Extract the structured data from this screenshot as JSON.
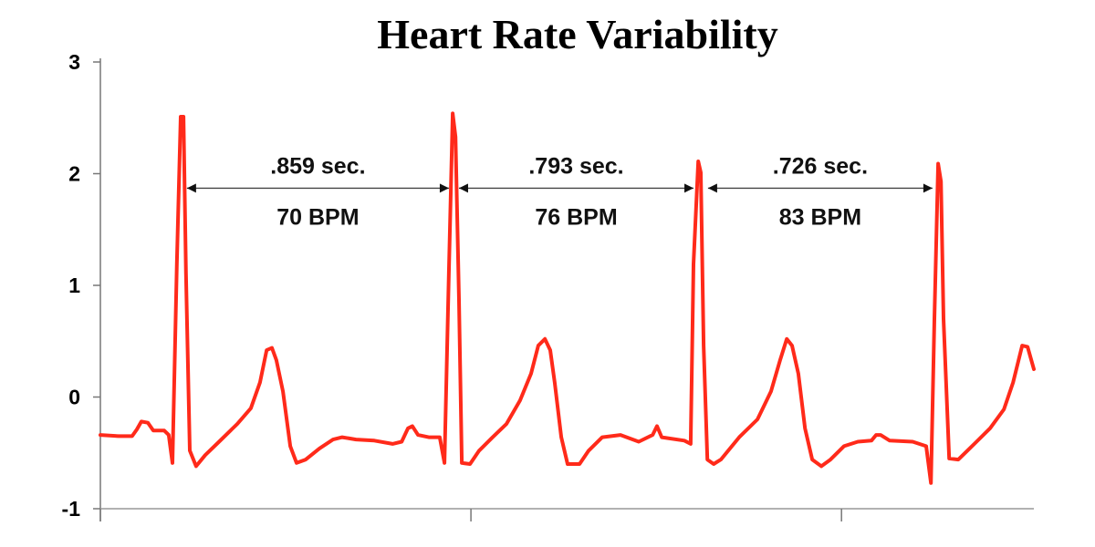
{
  "chart_data": {
    "type": "line",
    "title": "Heart Rate Variability",
    "xlabel": "",
    "ylabel": "",
    "ylim": [
      -1,
      3
    ],
    "xlim": [
      0,
      2.965
    ],
    "y_ticks": [
      3,
      2,
      1,
      0,
      -1
    ],
    "y_tick_labels": [
      "3",
      "2",
      "1",
      "0",
      "-1"
    ],
    "x_ticks": [
      0,
      1.177,
      2.354
    ],
    "grid": false,
    "legend": "none",
    "line_color": "#ff2a1a",
    "series": [
      {
        "points": [
          [
            0.0,
            -0.34
          ],
          [
            0.058,
            -0.35
          ],
          [
            0.101,
            -0.35
          ],
          [
            0.116,
            -0.29
          ],
          [
            0.13,
            -0.22
          ],
          [
            0.151,
            -0.23
          ],
          [
            0.168,
            -0.3
          ],
          [
            0.203,
            -0.3
          ],
          [
            0.217,
            -0.34
          ],
          [
            0.229,
            -0.59
          ],
          [
            0.243,
            1.19
          ],
          [
            0.255,
            2.51
          ],
          [
            0.264,
            2.51
          ],
          [
            0.272,
            1.11
          ],
          [
            0.284,
            -0.48
          ],
          [
            0.304,
            -0.62
          ],
          [
            0.333,
            -0.52
          ],
          [
            0.377,
            -0.4
          ],
          [
            0.435,
            -0.24
          ],
          [
            0.478,
            -0.1
          ],
          [
            0.507,
            0.13
          ],
          [
            0.528,
            0.42
          ],
          [
            0.545,
            0.44
          ],
          [
            0.559,
            0.33
          ],
          [
            0.58,
            0.05
          ],
          [
            0.603,
            -0.44
          ],
          [
            0.623,
            -0.59
          ],
          [
            0.652,
            -0.56
          ],
          [
            0.696,
            -0.46
          ],
          [
            0.739,
            -0.38
          ],
          [
            0.768,
            -0.36
          ],
          [
            0.812,
            -0.38
          ],
          [
            0.87,
            -0.39
          ],
          [
            0.928,
            -0.42
          ],
          [
            0.957,
            -0.4
          ],
          [
            0.977,
            -0.28
          ],
          [
            0.991,
            -0.26
          ],
          [
            1.009,
            -0.34
          ],
          [
            1.043,
            -0.36
          ],
          [
            1.078,
            -0.36
          ],
          [
            1.093,
            -0.59
          ],
          [
            1.107,
            1.11
          ],
          [
            1.119,
            2.54
          ],
          [
            1.128,
            2.33
          ],
          [
            1.139,
            0.87
          ],
          [
            1.148,
            -0.59
          ],
          [
            1.174,
            -0.6
          ],
          [
            1.203,
            -0.48
          ],
          [
            1.246,
            -0.36
          ],
          [
            1.29,
            -0.24
          ],
          [
            1.333,
            -0.03
          ],
          [
            1.368,
            0.21
          ],
          [
            1.391,
            0.46
          ],
          [
            1.412,
            0.52
          ],
          [
            1.429,
            0.42
          ],
          [
            1.443,
            0.13
          ],
          [
            1.464,
            -0.36
          ],
          [
            1.484,
            -0.6
          ],
          [
            1.522,
            -0.6
          ],
          [
            1.551,
            -0.48
          ],
          [
            1.594,
            -0.36
          ],
          [
            1.652,
            -0.34
          ],
          [
            1.71,
            -0.4
          ],
          [
            1.754,
            -0.34
          ],
          [
            1.768,
            -0.26
          ],
          [
            1.783,
            -0.36
          ],
          [
            1.855,
            -0.39
          ],
          [
            1.875,
            -0.42
          ],
          [
            1.884,
            1.19
          ],
          [
            1.899,
            2.11
          ],
          [
            1.907,
            2.01
          ],
          [
            1.916,
            0.46
          ],
          [
            1.928,
            -0.56
          ],
          [
            1.948,
            -0.6
          ],
          [
            1.971,
            -0.56
          ],
          [
            2.029,
            -0.36
          ],
          [
            2.087,
            -0.2
          ],
          [
            2.13,
            0.05
          ],
          [
            2.159,
            0.33
          ],
          [
            2.18,
            0.52
          ],
          [
            2.197,
            0.46
          ],
          [
            2.217,
            0.21
          ],
          [
            2.238,
            -0.28
          ],
          [
            2.261,
            -0.56
          ],
          [
            2.29,
            -0.62
          ],
          [
            2.319,
            -0.56
          ],
          [
            2.362,
            -0.44
          ],
          [
            2.406,
            -0.4
          ],
          [
            2.449,
            -0.39
          ],
          [
            2.464,
            -0.34
          ],
          [
            2.478,
            -0.34
          ],
          [
            2.507,
            -0.39
          ],
          [
            2.58,
            -0.4
          ],
          [
            2.623,
            -0.44
          ],
          [
            2.638,
            -0.77
          ],
          [
            2.649,
            0.7
          ],
          [
            2.661,
            2.09
          ],
          [
            2.67,
            1.93
          ],
          [
            2.678,
            0.7
          ],
          [
            2.696,
            -0.55
          ],
          [
            2.725,
            -0.56
          ],
          [
            2.754,
            -0.48
          ],
          [
            2.783,
            -0.4
          ],
          [
            2.826,
            -0.28
          ],
          [
            2.87,
            -0.11
          ],
          [
            2.899,
            0.13
          ],
          [
            2.928,
            0.46
          ],
          [
            2.945,
            0.45
          ],
          [
            2.965,
            0.25
          ]
        ]
      }
    ],
    "annotations": [
      {
        "interval": ".859 sec.",
        "rate": "70 BPM",
        "from": 0.275,
        "to": 1.107,
        "y": 1.87
      },
      {
        "interval": ".793 sec.",
        "rate": "76 BPM",
        "from": 1.139,
        "to": 1.884,
        "y": 1.87
      },
      {
        "interval": ".726 sec.",
        "rate": "83 BPM",
        "from": 1.93,
        "to": 2.643,
        "y": 1.87
      }
    ]
  }
}
